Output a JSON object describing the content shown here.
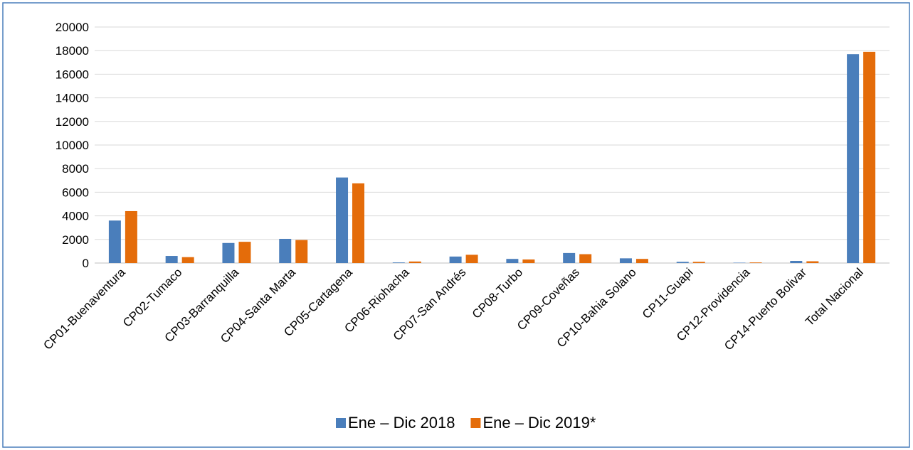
{
  "chart_data": {
    "type": "bar",
    "categories": [
      "CP01-Buenaventura",
      "CP02-Tumaco",
      "CP03-Barranquilla",
      "CP04-Santa Marta",
      "CP05-Cartagena",
      "CP06-Riohacha",
      "CP07-San Andrés",
      "CP08-Turbo",
      "CP09-Coveñas",
      "CP10-Bahia Solano",
      "CP11-Guapi",
      "CP12-Providencia",
      "CP14-Puerto Bolivar",
      "Total Nacional"
    ],
    "series": [
      {
        "name": "Ene – Dic 2018",
        "color": "#4a7ebb",
        "values": [
          3600,
          600,
          1700,
          2050,
          7250,
          50,
          550,
          350,
          850,
          400,
          100,
          30,
          180,
          17700
        ]
      },
      {
        "name": "Ene – Dic 2019*",
        "color": "#e46c0a",
        "values": [
          4400,
          500,
          1800,
          1950,
          6750,
          130,
          700,
          300,
          750,
          350,
          100,
          50,
          150,
          17900
        ]
      }
    ],
    "ylim": [
      0,
      20000
    ],
    "yticks": [
      0,
      2000,
      4000,
      6000,
      8000,
      10000,
      12000,
      14000,
      16000,
      18000,
      20000
    ],
    "grid": true,
    "legend": "bottom"
  }
}
